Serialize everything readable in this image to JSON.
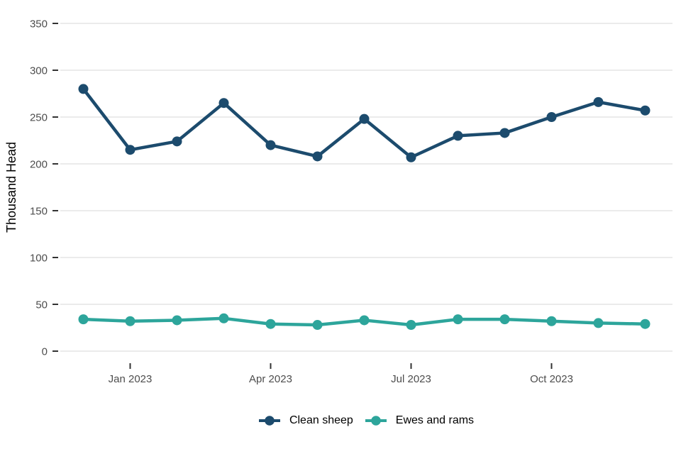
{
  "chart_data": {
    "type": "line",
    "title": "",
    "xlabel": "",
    "ylabel": "Thousand Head",
    "ylim": [
      0,
      350
    ],
    "yticks": [
      0,
      50,
      100,
      150,
      200,
      250,
      300,
      350
    ],
    "grid": "horizontal-major-only",
    "legend_position": "bottom-center",
    "categories": [
      "Dec 2022",
      "Jan 2023",
      "Feb 2023",
      "Mar 2023",
      "Apr 2023",
      "May 2023",
      "Jun 2023",
      "Jul 2023",
      "Aug 2023",
      "Sep 2023",
      "Oct 2023",
      "Nov 2023",
      "Dec 2023"
    ],
    "x_ticks": [
      {
        "index": 1,
        "label": "Jan 2023"
      },
      {
        "index": 4,
        "label": "Apr 2023"
      },
      {
        "index": 7,
        "label": "Jul 2023"
      },
      {
        "index": 10,
        "label": "Oct 2023"
      }
    ],
    "series": [
      {
        "name": "Clean sheep",
        "color": "#1c4b6d",
        "values": [
          280,
          215,
          224,
          265,
          220,
          208,
          248,
          207,
          230,
          233,
          250,
          266,
          257
        ]
      },
      {
        "name": "Ewes and rams",
        "color": "#2da59b",
        "values": [
          34,
          32,
          33,
          35,
          29,
          28,
          33,
          28,
          34,
          34,
          32,
          30,
          29
        ]
      }
    ]
  },
  "colors": {
    "background": "#ffffff",
    "gridline": "#ebebeb",
    "tick": "#333333",
    "axis_text": "#4d4d4d",
    "axis_title": "#000000"
  }
}
